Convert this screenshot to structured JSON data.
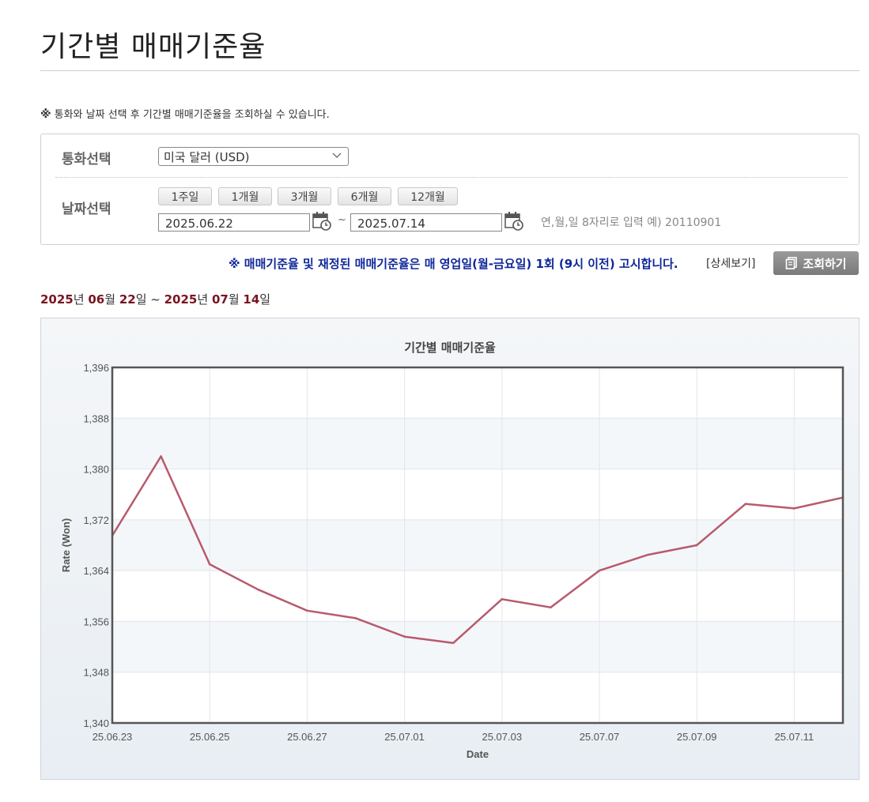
{
  "page": {
    "title": "기간별 매매기준율"
  },
  "notice": {
    "mark": "※",
    "text": "통화와 날짜 선택 후 기간별 매매기준율을 조회하실 수 있습니다."
  },
  "filter": {
    "currency_label": "통화선택",
    "currency_value": "미국 달러 (USD)",
    "date_label": "날짜선택",
    "periods": [
      "1주일",
      "1개월",
      "3개월",
      "6개월",
      "12개월"
    ],
    "start_date": "2025.06.22",
    "end_date": "2025.07.14",
    "tilde": "~",
    "date_hint": "연,월,일 8자리로 입력 예) 20110901"
  },
  "announcement": "※ 매매기준율 및 재정된 매매기준율은 매 영업일(월-금요일) 1회 (9시 이전) 고시합니다.",
  "detail_link": "[상세보기]",
  "search_button": "조회하기",
  "range": {
    "y1": "2025",
    "u1": "년",
    "m1": "06",
    "u2": "월",
    "d1": "22",
    "u3": "일",
    "sep": " ~ ",
    "y2": "2025",
    "u4": "년",
    "m2": "07",
    "u5": "월",
    "d2": "14",
    "u6": "일"
  },
  "colors": {
    "line": "#b85a6c",
    "accent_dark_red": "#7a1520",
    "announce_blue": "#10289a"
  },
  "chart_data": {
    "type": "line",
    "title": "기간별 매매기준율",
    "xlabel": "Date",
    "ylabel": "Rate (Won)",
    "ylim": [
      1340,
      1396
    ],
    "yticks": [
      "1,340",
      "1,348",
      "1,356",
      "1,364",
      "1,372",
      "1,380",
      "1,388",
      "1,396"
    ],
    "x_tick_labels": [
      "25.06.23",
      "25.06.25",
      "25.06.27",
      "25.07.01",
      "25.07.03",
      "25.07.07",
      "25.07.09",
      "25.07.11"
    ],
    "x": [
      "25.06.23",
      "25.06.24",
      "25.06.25",
      "25.06.26",
      "25.06.27",
      "25.06.30",
      "25.07.01",
      "25.07.02",
      "25.07.03",
      "25.07.04",
      "25.07.07",
      "25.07.08",
      "25.07.09",
      "25.07.10",
      "25.07.11",
      "25.07.14"
    ],
    "series": [
      {
        "values": [
          1369.5,
          1382.0,
          1365.0,
          1361.0,
          1357.7,
          1356.5,
          1353.6,
          1352.6,
          1359.5,
          1358.2,
          1364.0,
          1366.5,
          1368.0,
          1374.5,
          1373.8,
          1375.5
        ]
      }
    ],
    "grid": true,
    "legend": "none"
  }
}
